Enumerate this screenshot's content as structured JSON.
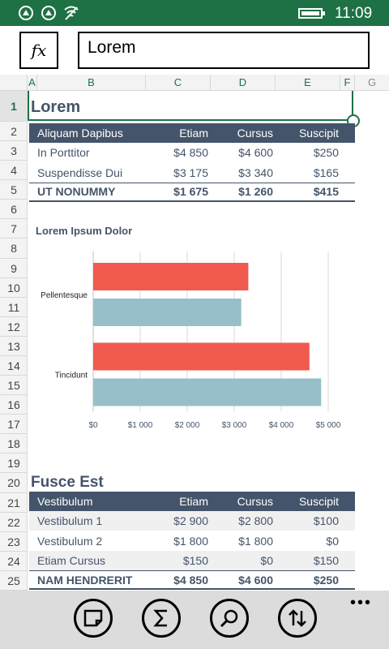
{
  "status_bar": {
    "time": "11:09"
  },
  "formula_bar": {
    "fx_label": "fx",
    "value": "Lorem"
  },
  "columns": [
    "A",
    "B",
    "C",
    "D",
    "E",
    "F",
    "G"
  ],
  "rows": [
    "1",
    "2",
    "3",
    "4",
    "5",
    "6",
    "7",
    "8",
    "9",
    "10",
    "11",
    "12",
    "13",
    "14",
    "15",
    "16",
    "17",
    "18",
    "19",
    "20",
    "21",
    "22",
    "23",
    "24",
    "25"
  ],
  "table1": {
    "title": "Lorem",
    "header": [
      "Aliquam Dapibus",
      "Etiam",
      "Cursus",
      "Suscipit"
    ],
    "rows": [
      [
        "In Porttitor",
        "$4 850",
        "$4 600",
        "$250"
      ],
      [
        "Suspendisse Dui",
        "$3 175",
        "$3 340",
        "$165"
      ]
    ],
    "total": [
      "UT NONUMMY",
      "$1 675",
      "$1 260",
      "$415"
    ]
  },
  "chart_data": {
    "type": "bar",
    "orientation": "horizontal",
    "title": "Lorem Ipsum Dolor",
    "categories": [
      "Pellentesque",
      "Tincidunt"
    ],
    "series": [
      {
        "values": [
          3300,
          4600
        ],
        "color": "#f05a4e"
      },
      {
        "values": [
          3150,
          4850
        ],
        "color": "#96bfc9"
      }
    ],
    "xlim": [
      0,
      5000
    ],
    "x_ticks": [
      "$0",
      "$1 000",
      "$2 000",
      "$3 000",
      "$4 000",
      "$5 000"
    ],
    "x_tick_values": [
      0,
      1000,
      2000,
      3000,
      4000,
      5000
    ],
    "grid": true
  },
  "table2": {
    "title": "Fusce Est",
    "header": [
      "Vestibulum",
      "Etiam",
      "Cursus",
      "Suscipit"
    ],
    "rows": [
      [
        "Vestibulum 1",
        "$2 900",
        "$2 800",
        "$100"
      ],
      [
        "Vestibulum 2",
        "$1 800",
        "$1 800",
        "$0"
      ],
      [
        "Etiam Cursus",
        "$150",
        "$0",
        "$150"
      ]
    ],
    "total": [
      "NAM HENDRERIT",
      "$4 850",
      "$4 600",
      "$250"
    ]
  },
  "app_bar": {
    "more": "•••"
  },
  "colors": {
    "accent": "#1e7145",
    "table_header": "#44546a"
  }
}
